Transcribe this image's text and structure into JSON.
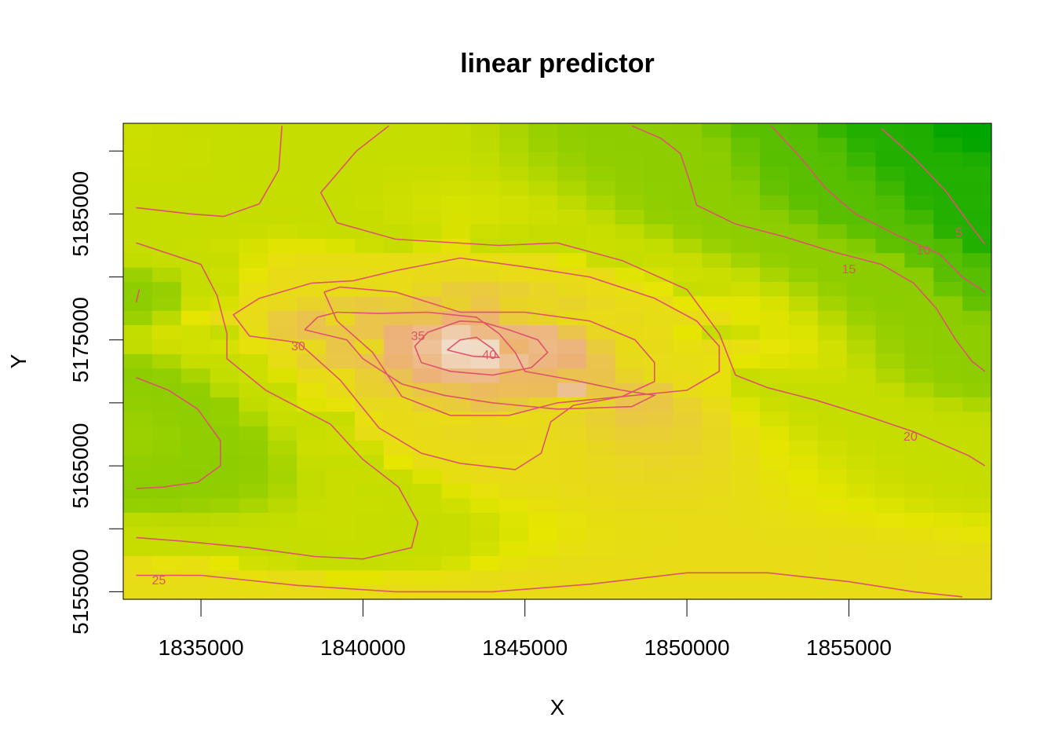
{
  "chart_data": {
    "type": "heatmap",
    "title": "linear predictor",
    "xlabel": "X",
    "ylabel": "Y",
    "xlim": [
      1832600,
      1859400
    ],
    "ylim": [
      5154400,
      5192200
    ],
    "x_ticks": [
      "1835000",
      "1840000",
      "1845000",
      "1850000",
      "1855000"
    ],
    "y_ticks": [
      "5155000",
      "5165000",
      "5175000",
      "5185000"
    ],
    "y_tick_values": [
      5155000,
      5160000,
      5165000,
      5170000,
      5175000,
      5180000,
      5185000,
      5190000
    ],
    "y_labeled_ticks": [
      5155000,
      5165000,
      5175000,
      5185000
    ],
    "x_tick_values": [
      1835000,
      1840000,
      1845000,
      1850000,
      1855000
    ],
    "color_scale": {
      "low": "#00A600",
      "mid": "#E6E600",
      "high": "#F2F2F2",
      "range": [
        2,
        44
      ]
    },
    "contour_color": "#DF536B",
    "grid": false,
    "contours": [
      {
        "level": 5,
        "label": "5",
        "paths": [
          [
            [
              1856000,
              5191800
            ],
            [
              1857000,
              5189500
            ],
            [
              1858000,
              5186800
            ],
            [
              1858700,
              5184300
            ],
            [
              1859200,
              5182600
            ]
          ]
        ],
        "label_at": [
          1858400,
          5183500
        ]
      },
      {
        "level": 10,
        "label": "10",
        "paths": [
          [
            [
              1852600,
              5192000
            ],
            [
              1853500,
              5189500
            ],
            [
              1854300,
              5187000
            ],
            [
              1855200,
              5185000
            ],
            [
              1856500,
              5183300
            ],
            [
              1857800,
              5181800
            ],
            [
              1858500,
              5180000
            ],
            [
              1859200,
              5178800
            ]
          ]
        ],
        "label_at": [
          1857300,
          5182100
        ]
      },
      {
        "level": 15,
        "label": "15",
        "paths": [
          [
            [
              1848300,
              5192000
            ],
            [
              1849200,
              5191000
            ],
            [
              1849800,
              5189800
            ],
            [
              1850100,
              5187500
            ],
            [
              1850300,
              5185700
            ],
            [
              1851500,
              5184200
            ],
            [
              1853000,
              5183200
            ],
            [
              1854500,
              5182000
            ],
            [
              1856000,
              5181000
            ],
            [
              1857000,
              5179500
            ],
            [
              1857700,
              5177500
            ],
            [
              1858300,
              5175000
            ],
            [
              1858800,
              5173300
            ],
            [
              1859200,
              5172500
            ]
          ],
          [
            [
              1833000,
              5172000
            ],
            [
              1834000,
              5171000
            ],
            [
              1834900,
              5169500
            ],
            [
              1835600,
              5167000
            ],
            [
              1835600,
              5165000
            ],
            [
              1834900,
              5163700
            ],
            [
              1833800,
              5163300
            ],
            [
              1833000,
              5163200
            ]
          ],
          [
            [
              1833000,
              5178000
            ],
            [
              1833100,
              5179000
            ]
          ]
        ],
        "label_at": [
          1855000,
          5180600
        ]
      },
      {
        "level": 20,
        "label": "20",
        "paths": [
          [
            [
              1837500,
              5192000
            ],
            [
              1837400,
              5188500
            ],
            [
              1836800,
              5185800
            ],
            [
              1835700,
              5184800
            ],
            [
              1834700,
              5185000
            ],
            [
              1833000,
              5185500
            ]
          ],
          [
            [
              1840800,
              5192000
            ],
            [
              1839800,
              5190000
            ],
            [
              1838700,
              5186700
            ],
            [
              1839200,
              5184300
            ],
            [
              1841000,
              5183000
            ],
            [
              1844200,
              5182500
            ],
            [
              1846000,
              5182700
            ],
            [
              1848000,
              5181300
            ],
            [
              1850000,
              5179000
            ],
            [
              1851000,
              5175500
            ],
            [
              1851500,
              5172200
            ],
            [
              1852500,
              5171200
            ],
            [
              1854000,
              5170200
            ],
            [
              1855500,
              5169000
            ],
            [
              1857000,
              5167700
            ],
            [
              1858700,
              5165800
            ],
            [
              1859200,
              5165000
            ]
          ],
          [
            [
              1833000,
              5159300
            ],
            [
              1834500,
              5159000
            ],
            [
              1836500,
              5158500
            ],
            [
              1838500,
              5157800
            ],
            [
              1840000,
              5157600
            ],
            [
              1841500,
              5158500
            ],
            [
              1841700,
              5160500
            ],
            [
              1841100,
              5163300
            ],
            [
              1840000,
              5165500
            ],
            [
              1839000,
              5168300
            ],
            [
              1837000,
              5171000
            ],
            [
              1835800,
              5173500
            ],
            [
              1835800,
              5175500
            ],
            [
              1835500,
              5178500
            ],
            [
              1835000,
              5181000
            ],
            [
              1833000,
              5182700
            ]
          ]
        ],
        "label_at": [
          1856900,
          5167300
        ]
      },
      {
        "level": 25,
        "label": "25",
        "paths": [
          [
            [
              1833000,
              5156300
            ],
            [
              1835000,
              5156300
            ],
            [
              1838000,
              5155500
            ],
            [
              1841000,
              5155000
            ],
            [
              1844000,
              5155000
            ],
            [
              1847000,
              5155600
            ],
            [
              1850000,
              5156500
            ],
            [
              1852500,
              5156500
            ],
            [
              1855000,
              5155800
            ],
            [
              1857000,
              5155000
            ],
            [
              1858500,
              5154600
            ]
          ],
          [
            [
              1838800,
              5178800
            ],
            [
              1839300,
              5179200
            ],
            [
              1841000,
              5178800
            ],
            [
              1843000,
              5177200
            ],
            [
              1845000,
              5177200
            ],
            [
              1847000,
              5176500
            ],
            [
              1848400,
              5175000
            ],
            [
              1849000,
              5173200
            ],
            [
              1849000,
              5171700
            ],
            [
              1848000,
              5170500
            ],
            [
              1846000,
              5170000
            ],
            [
              1844500,
              5169000
            ],
            [
              1842700,
              5169000
            ],
            [
              1841200,
              5170500
            ],
            [
              1840300,
              5174000
            ],
            [
              1839200,
              5176500
            ],
            [
              1838800,
              5178800
            ]
          ],
          [
            [
              1838400,
              5179500
            ],
            [
              1836800,
              5178300
            ],
            [
              1836000,
              5177000
            ],
            [
              1836500,
              5175300
            ],
            [
              1838000,
              5174800
            ],
            [
              1839300,
              5171800
            ],
            [
              1840500,
              5168000
            ],
            [
              1841800,
              5166000
            ],
            [
              1843000,
              5165200
            ],
            [
              1844700,
              5164700
            ],
            [
              1845500,
              5166000
            ],
            [
              1845800,
              5168500
            ],
            [
              1846500,
              5169800
            ],
            [
              1848000,
              5170500
            ],
            [
              1850000,
              5171000
            ],
            [
              1851000,
              5172500
            ],
            [
              1851000,
              5174500
            ],
            [
              1850300,
              5176500
            ],
            [
              1849000,
              5178300
            ],
            [
              1847000,
              5180000
            ],
            [
              1845000,
              5180800
            ],
            [
              1843000,
              5181500
            ],
            [
              1841000,
              5180500
            ],
            [
              1839700,
              5179700
            ],
            [
              1838400,
              5179500
            ]
          ]
        ],
        "label_at": [
          1833700,
          5155900
        ]
      },
      {
        "level": 30,
        "label": "30",
        "paths": [
          [
            [
              1838200,
              5175800
            ],
            [
              1838600,
              5176800
            ],
            [
              1839200,
              5177200
            ],
            [
              1840500,
              5177100
            ],
            [
              1842000,
              5177200
            ],
            [
              1843500,
              5176800
            ],
            [
              1844200,
              5175500
            ],
            [
              1844700,
              5174000
            ],
            [
              1845000,
              5172500
            ],
            [
              1846500,
              5171800
            ],
            [
              1848000,
              5171000
            ],
            [
              1849000,
              5170600
            ],
            [
              1848300,
              5169700
            ],
            [
              1846000,
              5169500
            ],
            [
              1844000,
              5170000
            ],
            [
              1842500,
              5170600
            ],
            [
              1841200,
              5171500
            ],
            [
              1840000,
              5173500
            ],
            [
              1839500,
              5175000
            ],
            [
              1838200,
              5175800
            ]
          ]
        ],
        "label_at": [
          1838000,
          5174500
        ]
      },
      {
        "level": 35,
        "label": "35",
        "paths": [
          [
            [
              1843700,
              5176400
            ],
            [
              1843000,
              5176500
            ],
            [
              1842000,
              5175600
            ],
            [
              1841600,
              5174500
            ],
            [
              1841800,
              5173200
            ],
            [
              1842700,
              5172500
            ],
            [
              1844000,
              5172200
            ],
            [
              1845200,
              5172800
            ],
            [
              1845700,
              5174000
            ],
            [
              1845400,
              5175000
            ],
            [
              1844500,
              5175800
            ],
            [
              1843700,
              5176400
            ]
          ]
        ],
        "label_at": [
          1841700,
          5175300
        ]
      },
      {
        "level": 40,
        "label": "40",
        "paths": [
          [
            [
              1842600,
              5174200
            ],
            [
              1843000,
              5175000
            ],
            [
              1843500,
              5175200
            ],
            [
              1844000,
              5174300
            ],
            [
              1844200,
              5173600
            ],
            [
              1843400,
              5173700
            ],
            [
              1842600,
              5174200
            ]
          ]
        ],
        "label_at": [
          1843900,
          5173800
        ]
      }
    ]
  }
}
